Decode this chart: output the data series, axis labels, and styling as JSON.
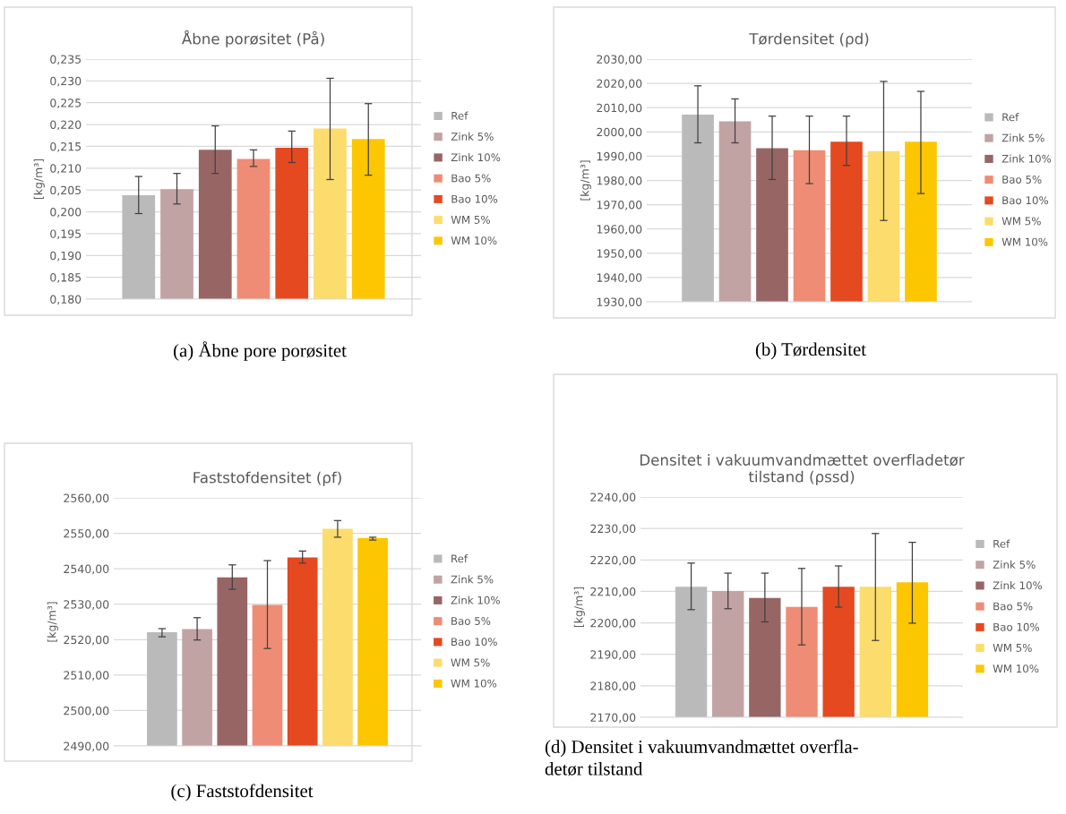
{
  "chart_data": [
    {
      "type": "bar",
      "title": "Åbne porøsitet (På)",
      "ylabel": "[kg/m³]",
      "categories": [
        null
      ],
      "grid": "y",
      "legend": "right",
      "ylim": [
        0.18,
        0.235
      ],
      "yticks": [
        {
          "value": 0.18,
          "label": "0,180"
        },
        {
          "value": 0.185,
          "label": "0,185"
        },
        {
          "value": 0.19,
          "label": "0,190"
        },
        {
          "value": 0.195,
          "label": "0,195"
        },
        {
          "value": 0.2,
          "label": "0,200"
        },
        {
          "value": 0.205,
          "label": "0,205"
        },
        {
          "value": 0.21,
          "label": "0,210"
        },
        {
          "value": 0.215,
          "label": "0,215"
        },
        {
          "value": 0.22,
          "label": "0,220"
        },
        {
          "value": 0.225,
          "label": "0,225"
        },
        {
          "value": 0.23,
          "label": "0,230"
        },
        {
          "value": 0.235,
          "label": "0,235"
        }
      ],
      "series": [
        {
          "name": "Ref",
          "color": "#bababa",
          "values": [
            0.2038
          ],
          "errors": [
            [
              0.1996,
              0.2081
            ]
          ]
        },
        {
          "name": "Zink 5%",
          "color": "#c2a3a3",
          "values": [
            0.2052
          ],
          "errors": [
            [
              0.2018,
              0.2088
            ]
          ]
        },
        {
          "name": "Zink 10%",
          "color": "#986565",
          "values": [
            0.2142
          ],
          "errors": [
            [
              0.2088,
              0.2197
            ]
          ]
        },
        {
          "name": "Bao 5%",
          "color": "#ef8c75",
          "values": [
            0.2121
          ],
          "errors": [
            [
              0.2104,
              0.2142
            ]
          ]
        },
        {
          "name": "Bao 10%",
          "color": "#e54920",
          "values": [
            0.2147
          ],
          "errors": [
            [
              0.2113,
              0.2185
            ]
          ]
        },
        {
          "name": "WM 5%",
          "color": "#fcdc6c",
          "values": [
            0.2191
          ],
          "errors": [
            [
              0.2074,
              0.2306
            ]
          ]
        },
        {
          "name": "WM 10%",
          "color": "#fcc700",
          "values": [
            0.2167
          ],
          "errors": [
            [
              0.2084,
              0.2248
            ]
          ]
        }
      ],
      "annotations": [
        "(a) Åbne pore porøsitet"
      ]
    },
    {
      "type": "bar",
      "title": "Tørdensitet (ρd)",
      "ylabel": "[kg/m³]",
      "categories": [
        null
      ],
      "grid": "y",
      "legend": "right",
      "ylim": [
        1930,
        2030
      ],
      "yticks": [
        {
          "value": 1930,
          "label": "1930,00"
        },
        {
          "value": 1940,
          "label": "1940,00"
        },
        {
          "value": 1950,
          "label": "1950,00"
        },
        {
          "value": 1960,
          "label": "1960,00"
        },
        {
          "value": 1970,
          "label": "1970,00"
        },
        {
          "value": 1980,
          "label": "1980,00"
        },
        {
          "value": 1990,
          "label": "1990,00"
        },
        {
          "value": 2000,
          "label": "2000,00"
        },
        {
          "value": 2010,
          "label": "2010,00"
        },
        {
          "value": 2020,
          "label": "2020,00"
        },
        {
          "value": 2030,
          "label": "2030,00"
        }
      ],
      "series": [
        {
          "name": "Ref",
          "color": "#bababa",
          "values": [
            2007.1
          ],
          "errors": [
            [
              1995.5,
              2019.0
            ]
          ]
        },
        {
          "name": "Zink 5%",
          "color": "#c2a3a3",
          "values": [
            2004.4
          ],
          "errors": [
            [
              1995.5,
              2013.6
            ]
          ]
        },
        {
          "name": "Zink 10%",
          "color": "#986565",
          "values": [
            1993.3
          ],
          "errors": [
            [
              1980.4,
              2006.5
            ]
          ]
        },
        {
          "name": "Bao 5%",
          "color": "#ef8c75",
          "values": [
            1992.5
          ],
          "errors": [
            [
              1978.7,
              2006.5
            ]
          ]
        },
        {
          "name": "Bao 10%",
          "color": "#e54920",
          "values": [
            1996.0
          ],
          "errors": [
            [
              1986.2,
              2006.5
            ]
          ]
        },
        {
          "name": "WM 5%",
          "color": "#fcdc6c",
          "values": [
            1992.1
          ],
          "errors": [
            [
              1963.5,
              2020.8
            ]
          ]
        },
        {
          "name": "WM 10%",
          "color": "#fcc700",
          "values": [
            1996.0
          ],
          "errors": [
            [
              1974.6,
              2016.7
            ]
          ]
        }
      ],
      "annotations": [
        "(b) Tørdensitet"
      ]
    },
    {
      "type": "bar",
      "title": "Faststofdensitet (ρf)",
      "ylabel": "[kg/m³]",
      "categories": [
        null
      ],
      "grid": "y",
      "legend": "right",
      "ylim": [
        2490,
        2560
      ],
      "yticks": [
        {
          "value": 2490,
          "label": "2490,00"
        },
        {
          "value": 2500,
          "label": "2500,00"
        },
        {
          "value": 2510,
          "label": "2510,00"
        },
        {
          "value": 2520,
          "label": "2520,00"
        },
        {
          "value": 2530,
          "label": "2530,00"
        },
        {
          "value": 2540,
          "label": "2540,00"
        },
        {
          "value": 2550,
          "label": "2550,00"
        },
        {
          "value": 2560,
          "label": "2560,00"
        }
      ],
      "series": [
        {
          "name": "Ref",
          "color": "#bababa",
          "values": [
            2522.1
          ],
          "errors": [
            [
              2520.8,
              2523.1
            ]
          ]
        },
        {
          "name": "Zink 5%",
          "color": "#c2a3a3",
          "values": [
            2523.0
          ],
          "errors": [
            [
              2519.9,
              2526.2
            ]
          ]
        },
        {
          "name": "Zink 10%",
          "color": "#986565",
          "values": [
            2537.6
          ],
          "errors": [
            [
              2534.2,
              2541.1
            ]
          ]
        },
        {
          "name": "Bao 5%",
          "color": "#ef8c75",
          "values": [
            2529.8
          ],
          "errors": [
            [
              2517.5,
              2542.3
            ]
          ]
        },
        {
          "name": "Bao 10%",
          "color": "#e54920",
          "values": [
            2543.2
          ],
          "errors": [
            [
              2541.6,
              2545.0
            ]
          ]
        },
        {
          "name": "WM 5%",
          "color": "#fcdc6c",
          "values": [
            2551.3
          ],
          "errors": [
            [
              2548.9,
              2553.6
            ]
          ]
        },
        {
          "name": "WM 10%",
          "color": "#fcc700",
          "values": [
            2548.7
          ],
          "errors": [
            [
              2548.1,
              2548.9
            ]
          ]
        }
      ],
      "annotations": [
        "(c) Faststofdensitet"
      ]
    },
    {
      "type": "bar",
      "title": "Densitet i vakuumvandmættet overfladetør\ntilstand (ρssd)",
      "ylabel": "[kg/m³]",
      "categories": [
        null
      ],
      "grid": "y",
      "legend": "right",
      "ylim": [
        2170,
        2240
      ],
      "yticks": [
        {
          "value": 2170,
          "label": "2170,00"
        },
        {
          "value": 2180,
          "label": "2180,00"
        },
        {
          "value": 2190,
          "label": "2190,00"
        },
        {
          "value": 2200,
          "label": "2200,00"
        },
        {
          "value": 2210,
          "label": "2210,00"
        },
        {
          "value": 2220,
          "label": "2220,00"
        },
        {
          "value": 2230,
          "label": "2230,00"
        },
        {
          "value": 2240,
          "label": "2240,00"
        }
      ],
      "series": [
        {
          "name": "Ref",
          "color": "#bababa",
          "values": [
            2211.5
          ],
          "errors": [
            [
              2204.2,
              2219.0
            ]
          ]
        },
        {
          "name": "Zink 5%",
          "color": "#c2a3a3",
          "values": [
            2210.1
          ],
          "errors": [
            [
              2204.5,
              2215.8
            ]
          ]
        },
        {
          "name": "Zink 10%",
          "color": "#986565",
          "values": [
            2207.9
          ],
          "errors": [
            [
              2200.3,
              2215.8
            ]
          ]
        },
        {
          "name": "Bao 5%",
          "color": "#ef8c75",
          "values": [
            2205.1
          ],
          "errors": [
            [
              2193.0,
              2217.3
            ]
          ]
        },
        {
          "name": "Bao 10%",
          "color": "#e54920",
          "values": [
            2211.5
          ],
          "errors": [
            [
              2205.0,
              2218.1
            ]
          ]
        },
        {
          "name": "WM 5%",
          "color": "#fcdc6c",
          "values": [
            2211.5
          ],
          "errors": [
            [
              2194.4,
              2228.4
            ]
          ]
        },
        {
          "name": "WM 10%",
          "color": "#fcc700",
          "values": [
            2212.9
          ],
          "errors": [
            [
              2199.9,
              2225.6
            ]
          ]
        }
      ],
      "annotations": [
        "(d) Densitet i vakuumvandmættet overfla-\ndetør tilstand"
      ]
    }
  ]
}
